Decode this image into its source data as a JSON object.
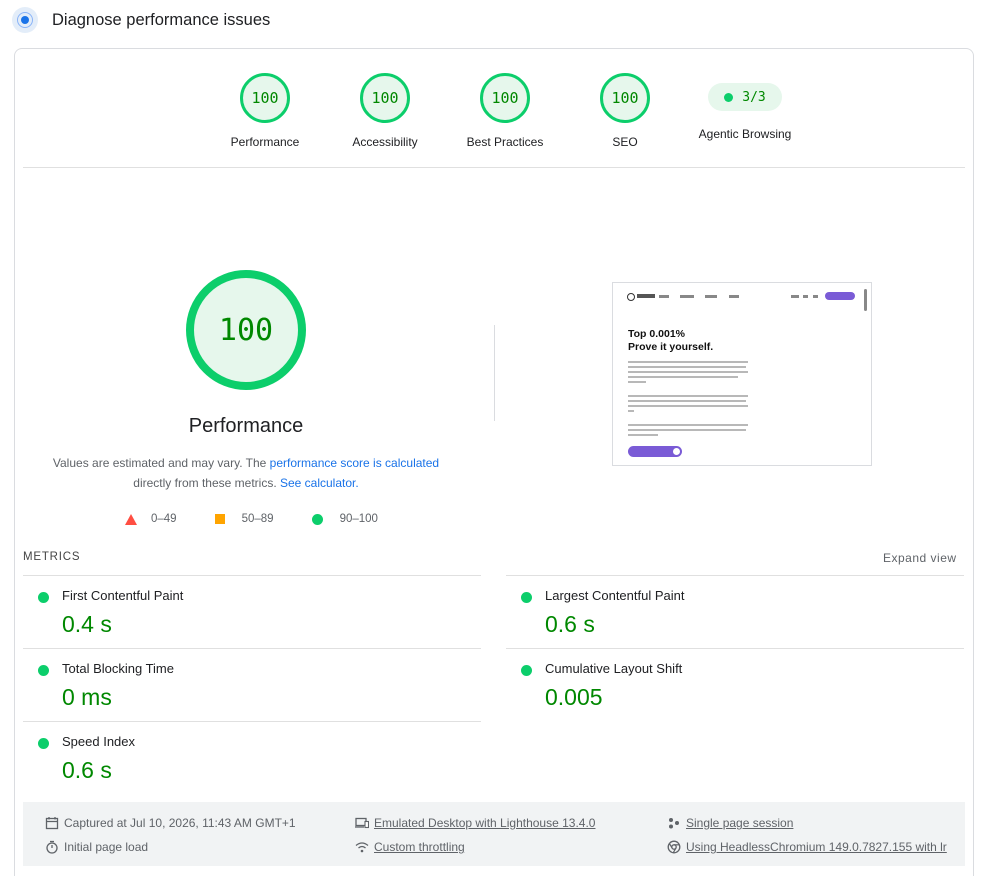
{
  "header": {
    "title": "Diagnose performance issues",
    "icon": "lighthouse-icon"
  },
  "score_gauges": [
    {
      "score": "100",
      "label": "Performance"
    },
    {
      "score": "100",
      "label": "Accessibility"
    },
    {
      "score": "100",
      "label": "Best Practices"
    },
    {
      "score": "100",
      "label": "SEO"
    }
  ],
  "agentic": {
    "value": "3/3",
    "label": "Agentic Browsing"
  },
  "performance": {
    "score": "100",
    "title": "Performance",
    "note_prefix": "Values are estimated and may vary. The ",
    "note_link": "performance score is calculated",
    "note_middle": " directly from these metrics. ",
    "note_link2": "See calculator.",
    "legend": [
      {
        "shape": "triangle",
        "range": "0–49",
        "color": "#ff4e42"
      },
      {
        "shape": "square",
        "range": "50–89",
        "color": "#ffa400"
      },
      {
        "shape": "circle",
        "range": "90–100",
        "color": "#0cce6b"
      }
    ]
  },
  "screenshot": {
    "headline_line1": "Top 0.001%",
    "headline_line2": "Prove it yourself."
  },
  "metrics": {
    "heading": "METRICS",
    "expand_label": "Expand view",
    "items": [
      {
        "label": "First Contentful Paint",
        "value": "0.4 s"
      },
      {
        "label": "Largest Contentful Paint",
        "value": "0.6 s"
      },
      {
        "label": "Total Blocking Time",
        "value": "0 ms"
      },
      {
        "label": "Cumulative Layout Shift",
        "value": "0.005"
      },
      {
        "label": "Speed Index",
        "value": "0.6 s"
      }
    ]
  },
  "footer": {
    "captured": "Captured at Jul 10, 2026, 11:43 AM GMT+1",
    "initial_load": "Initial page load",
    "emulated": "Emulated Desktop with Lighthouse 13.4.0",
    "throttling": "Custom throttling",
    "session": "Single page session",
    "browser": "Using HeadlessChromium 149.0.7827.155 with lr"
  },
  "colors": {
    "pass": "#0cce6b",
    "pass_text": "#008800",
    "pass_bg": "#e6f7ec",
    "link": "#1a73e8"
  }
}
